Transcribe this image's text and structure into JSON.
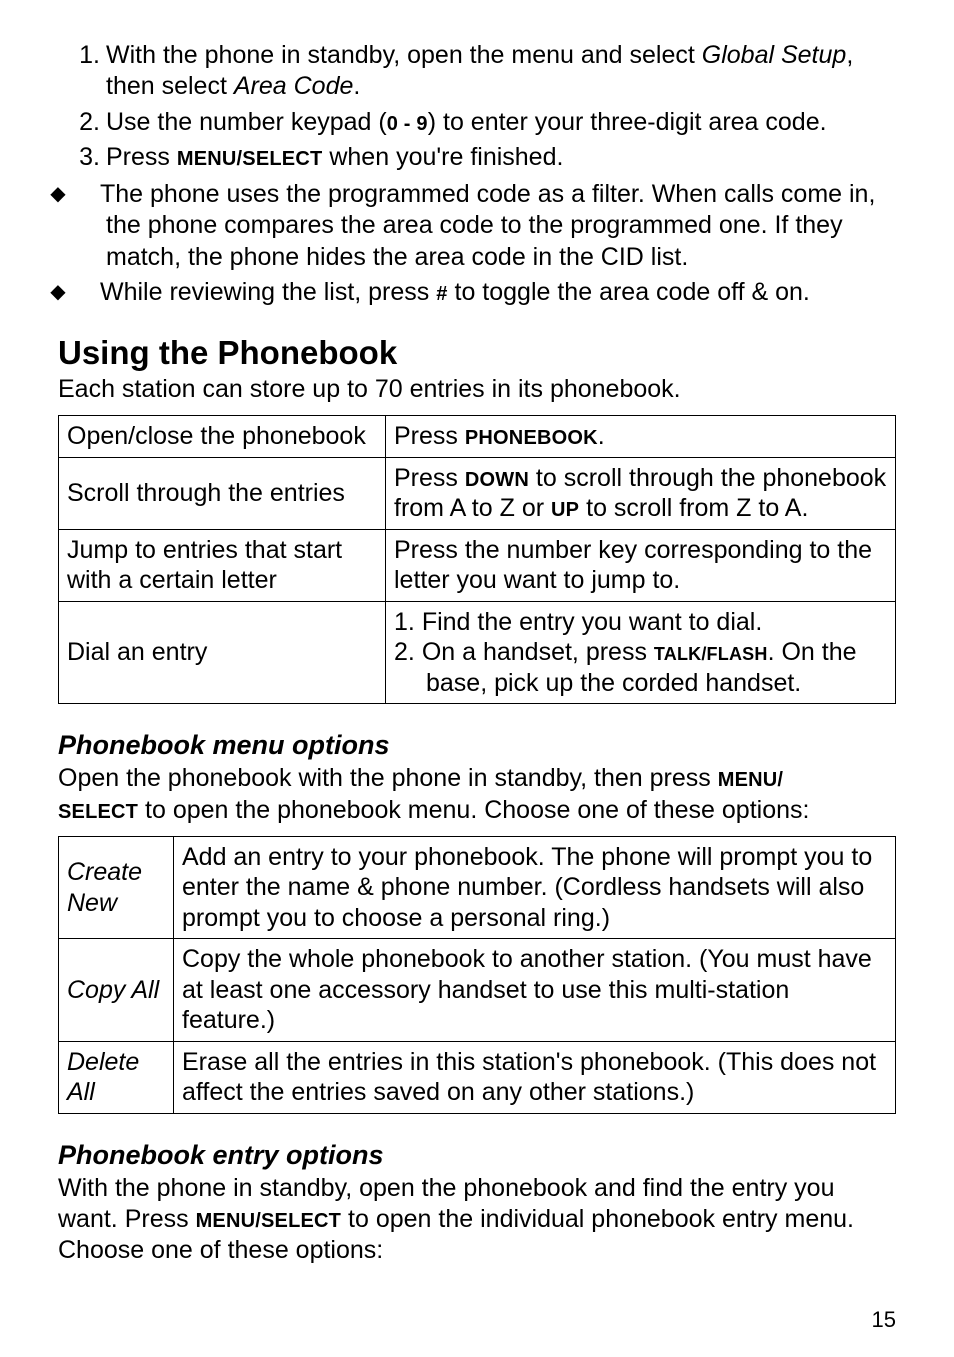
{
  "steps": [
    {
      "n": "1.",
      "pre": "With the phone in standby, open the menu and select ",
      "em1": "Global Setup",
      "mid": ", then select ",
      "em2": "Area Code",
      "post": "."
    },
    {
      "n": "2.",
      "pre": "Use the number keypad (",
      "kbd": "0 - 9",
      "post": ") to enter your three-digit area code."
    },
    {
      "n": "3.",
      "pre": "Press ",
      "kbd": "MENU/SELECT",
      "post": " when you're finished."
    }
  ],
  "bullets": [
    {
      "text": "The phone uses the programmed code as a filter. When calls come in, the phone compares the area code to the programmed one. If they match, the phone hides the area code in the CID list."
    },
    {
      "pre": "While reviewing the list, press ",
      "kbd": "#",
      "post": " to toggle the area code off & on."
    }
  ],
  "section_title": "Using the Phonebook",
  "section_intro": "Each station can store up to 70 entries in its phonebook.",
  "pb_table": [
    {
      "l": "Open/close the phonebook",
      "r_pre": "Press ",
      "r_kbd": "PHONEBOOK",
      "r_post": "."
    },
    {
      "l": "Scroll through the entries",
      "r_pre": "Press ",
      "r_kbd": "DOWN",
      "r_mid": " to scroll through the phonebook from A to Z or ",
      "r_kbd2": "UP",
      "r_post": " to scroll from Z to A."
    },
    {
      "l": "Jump to entries that start with a certain letter",
      "r_plain": "Press the number key corresponding to the letter you want to jump to."
    },
    {
      "l": "Dial an entry",
      "r_list": [
        {
          "n": "1.",
          "text": "Find the entry you want to dial."
        },
        {
          "n": "2.",
          "pre": "On a handset, press ",
          "kbd": "TALK/FLASH",
          "post": ". On the base, pick up the corded handset."
        }
      ]
    }
  ],
  "menu_options_title": "Phonebook menu options",
  "menu_options_intro_pre": "Open the phonebook with the phone in standby, then press ",
  "menu_options_intro_kbd": "MENU/\nSELECT",
  "menu_options_intro_post": " to open the phonebook menu. Choose one of these options:",
  "menu_table": [
    {
      "l": "Create New",
      "r": "Add an entry to your phonebook. The phone will prompt you to enter the name & phone number. (Cordless handsets will also prompt you to choose a personal ring.)"
    },
    {
      "l": "Copy All",
      "r": "Copy the whole phonebook to another station. (You must have at least one accessory handset to use this multi-station feature.)"
    },
    {
      "l": "Delete All",
      "r": "Erase all the entries in this station's phonebook. (This does not affect the entries saved on any other stations.)"
    }
  ],
  "entry_options_title": "Phonebook entry options",
  "entry_options_pre": "With the phone in standby, open the phonebook and find the entry you want. Press ",
  "entry_options_kbd": "MENU/SELECT",
  "entry_options_post": " to open the individual phonebook entry menu. Choose one of these options:",
  "page_number": "15"
}
